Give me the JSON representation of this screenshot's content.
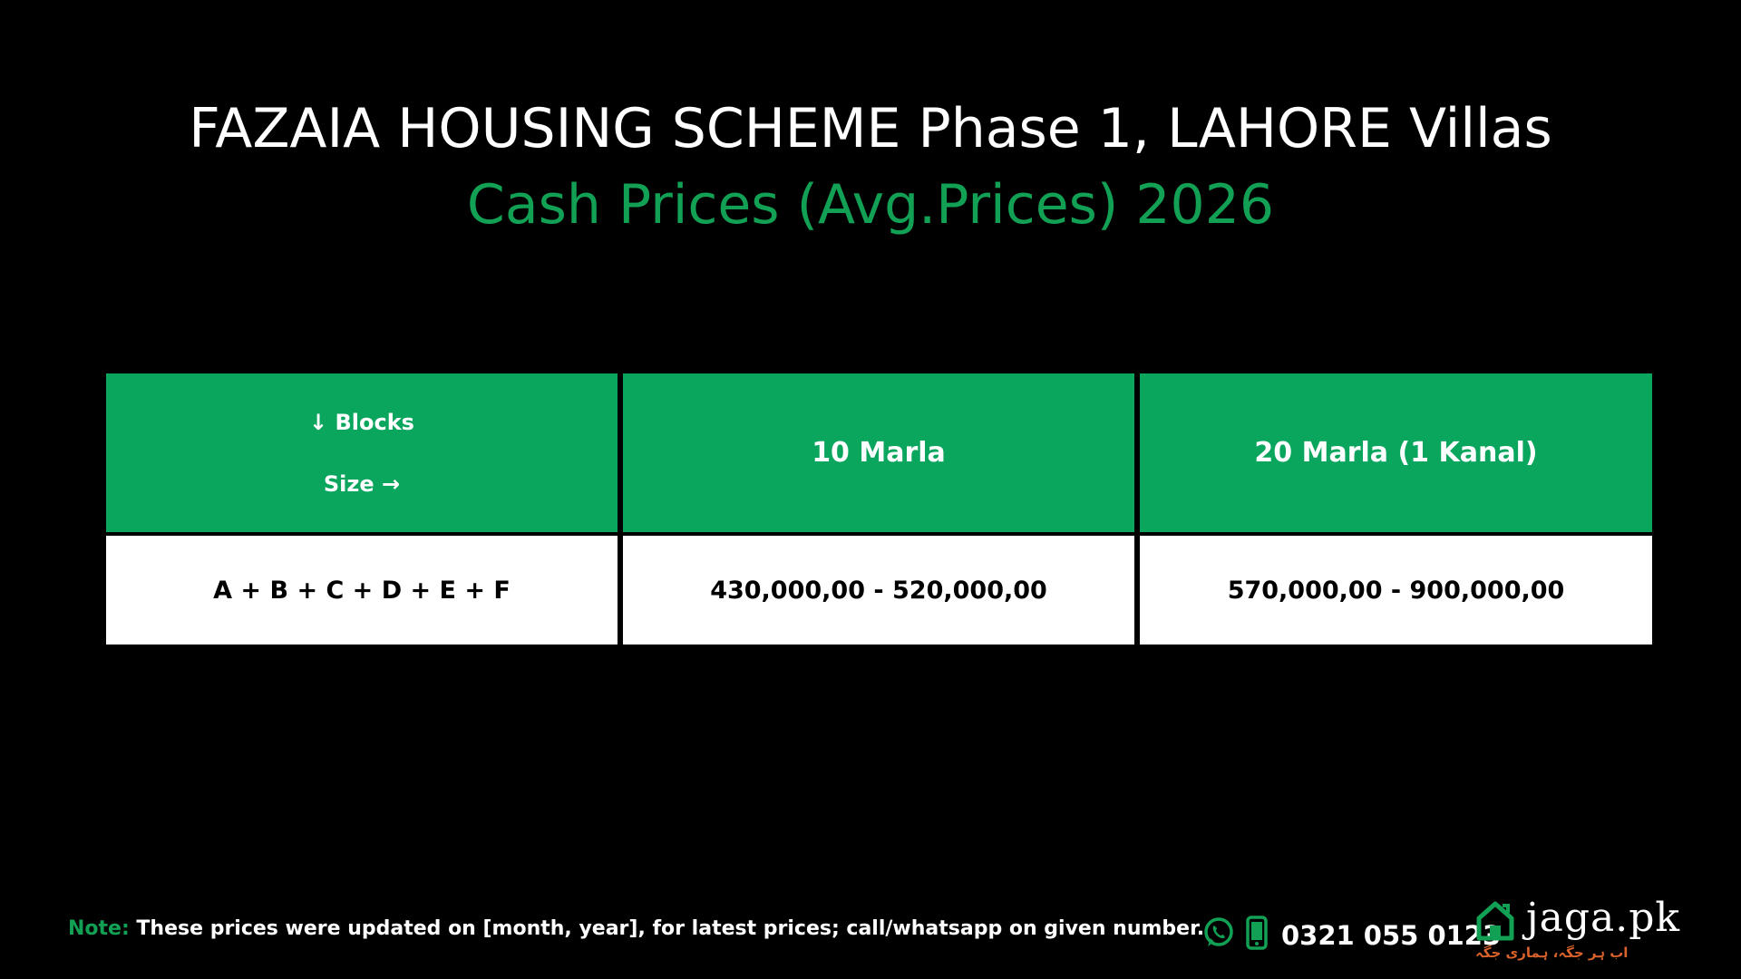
{
  "title": {
    "part1": "FAZAIA HOUSING SCHEME Phase 1, LAHORE Villas ",
    "part2": "Cash Prices (Avg.Prices) 2026"
  },
  "table": {
    "corner_top": "↓ Blocks",
    "corner_bottom": "Size →",
    "columns": [
      "10 Marla",
      "20 Marla (1 Kanal)"
    ],
    "rows": [
      {
        "block": "A + B + C + D + E + F",
        "values": [
          "430,000,00 - 520,000,00",
          "570,000,00 - 900,000,00"
        ]
      }
    ]
  },
  "note": {
    "label": "Note:",
    "text": " These prices were updated on [month, year], for latest prices; call/whatsapp on given number."
  },
  "contact": {
    "phone": "0321 055 0123",
    "icons": [
      "whatsapp-icon",
      "mobile-phone-icon"
    ]
  },
  "logo": {
    "text": "jaga.pk",
    "tagline": "اب ہر جگہ، ہماری جگہ"
  },
  "colors": {
    "background": "#000000",
    "accent_green": "#12a055",
    "header_green": "#0aa65e",
    "tagline_orange": "#d9622b"
  }
}
